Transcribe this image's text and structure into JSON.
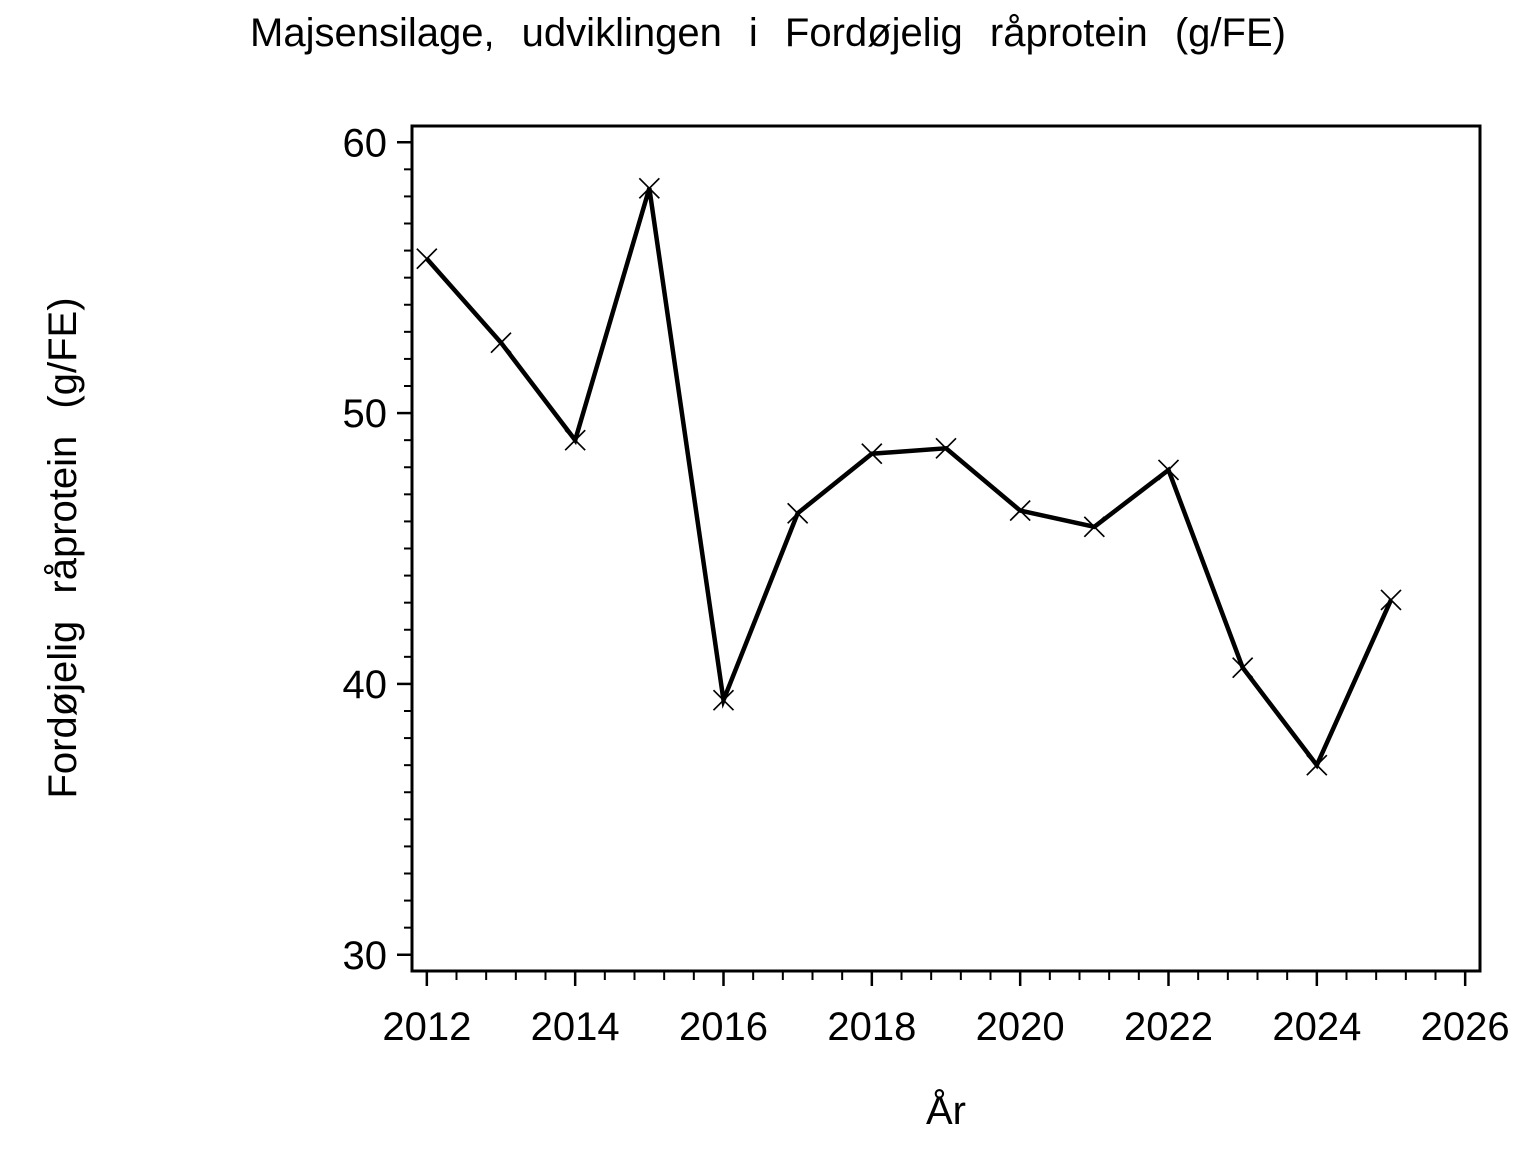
{
  "chart_data": {
    "type": "line",
    "title": "Majsensilage, udviklingen i Fordøjelig råprotein (g/FE)",
    "xlabel": "År",
    "ylabel": "Fordøjelig råprotein (g/FE)",
    "series": [
      {
        "name": "Fordøjelig råprotein (g/FE)",
        "x": [
          2012,
          2013,
          2014,
          2015,
          2016,
          2017,
          2018,
          2019,
          2020,
          2021,
          2022,
          2023,
          2024,
          2025
        ],
        "y": [
          55.7,
          52.6,
          49.0,
          58.3,
          39.4,
          46.3,
          48.5,
          48.7,
          46.4,
          45.8,
          47.9,
          40.6,
          37.0,
          43.1
        ]
      }
    ],
    "xlim": [
      2011.8,
      2026.2
    ],
    "ylim": [
      29.4,
      60.6
    ],
    "xticks": [
      2012,
      2014,
      2016,
      2018,
      2020,
      2022,
      2024,
      2026
    ],
    "yticks": [
      30,
      40,
      50,
      60
    ],
    "x_minor_step": 0.4,
    "y_minor_step": 1,
    "grid": false,
    "legend_position": "none",
    "marker": "x",
    "colors": {
      "line": "#000000",
      "text": "#000000",
      "frame": "#000000",
      "background": "#ffffff"
    }
  }
}
